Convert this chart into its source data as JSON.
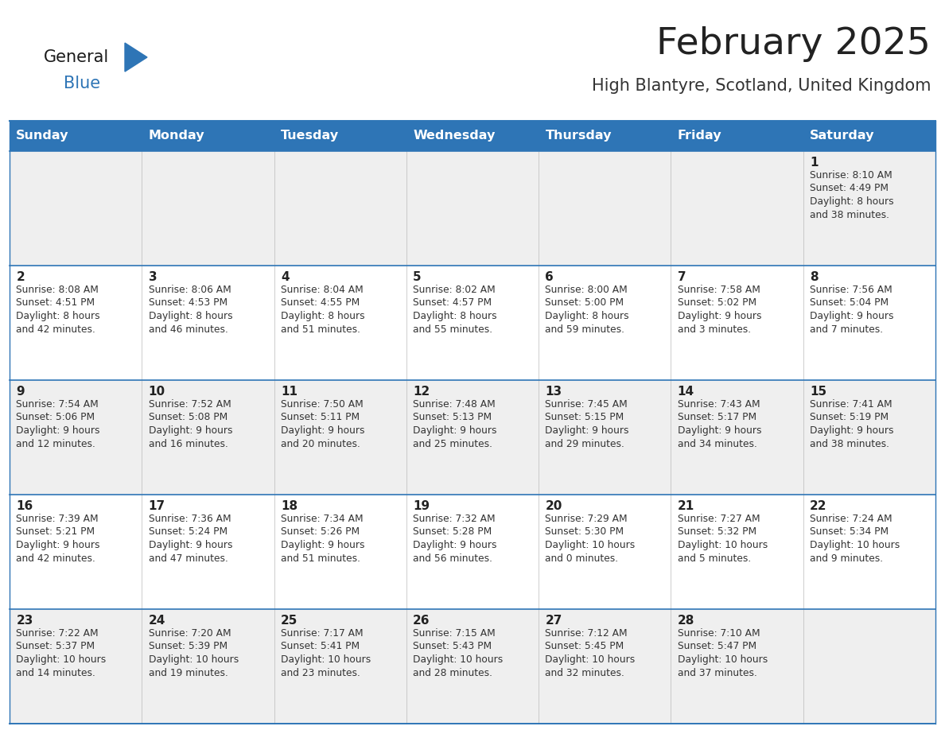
{
  "title": "February 2025",
  "subtitle": "High Blantyre, Scotland, United Kingdom",
  "days_of_week": [
    "Sunday",
    "Monday",
    "Tuesday",
    "Wednesday",
    "Thursday",
    "Friday",
    "Saturday"
  ],
  "header_bg": "#2E75B6",
  "header_text": "#FFFFFF",
  "row_bg_odd": "#EFEFEF",
  "row_bg_even": "#FFFFFF",
  "cell_border_color": "#2E75B6",
  "day_num_color": "#222222",
  "info_text_color": "#333333",
  "title_color": "#222222",
  "subtitle_color": "#333333",
  "logo_black": "#1a1a1a",
  "logo_blue": "#2E75B6",
  "calendar_data": [
    [
      null,
      null,
      null,
      null,
      null,
      null,
      {
        "day": 1,
        "sunrise": "8:10 AM",
        "sunset": "4:49 PM",
        "daylight_line1": "Daylight: 8 hours",
        "daylight_line2": "and 38 minutes."
      }
    ],
    [
      {
        "day": 2,
        "sunrise": "8:08 AM",
        "sunset": "4:51 PM",
        "daylight_line1": "Daylight: 8 hours",
        "daylight_line2": "and 42 minutes."
      },
      {
        "day": 3,
        "sunrise": "8:06 AM",
        "sunset": "4:53 PM",
        "daylight_line1": "Daylight: 8 hours",
        "daylight_line2": "and 46 minutes."
      },
      {
        "day": 4,
        "sunrise": "8:04 AM",
        "sunset": "4:55 PM",
        "daylight_line1": "Daylight: 8 hours",
        "daylight_line2": "and 51 minutes."
      },
      {
        "day": 5,
        "sunrise": "8:02 AM",
        "sunset": "4:57 PM",
        "daylight_line1": "Daylight: 8 hours",
        "daylight_line2": "and 55 minutes."
      },
      {
        "day": 6,
        "sunrise": "8:00 AM",
        "sunset": "5:00 PM",
        "daylight_line1": "Daylight: 8 hours",
        "daylight_line2": "and 59 minutes."
      },
      {
        "day": 7,
        "sunrise": "7:58 AM",
        "sunset": "5:02 PM",
        "daylight_line1": "Daylight: 9 hours",
        "daylight_line2": "and 3 minutes."
      },
      {
        "day": 8,
        "sunrise": "7:56 AM",
        "sunset": "5:04 PM",
        "daylight_line1": "Daylight: 9 hours",
        "daylight_line2": "and 7 minutes."
      }
    ],
    [
      {
        "day": 9,
        "sunrise": "7:54 AM",
        "sunset": "5:06 PM",
        "daylight_line1": "Daylight: 9 hours",
        "daylight_line2": "and 12 minutes."
      },
      {
        "day": 10,
        "sunrise": "7:52 AM",
        "sunset": "5:08 PM",
        "daylight_line1": "Daylight: 9 hours",
        "daylight_line2": "and 16 minutes."
      },
      {
        "day": 11,
        "sunrise": "7:50 AM",
        "sunset": "5:11 PM",
        "daylight_line1": "Daylight: 9 hours",
        "daylight_line2": "and 20 minutes."
      },
      {
        "day": 12,
        "sunrise": "7:48 AM",
        "sunset": "5:13 PM",
        "daylight_line1": "Daylight: 9 hours",
        "daylight_line2": "and 25 minutes."
      },
      {
        "day": 13,
        "sunrise": "7:45 AM",
        "sunset": "5:15 PM",
        "daylight_line1": "Daylight: 9 hours",
        "daylight_line2": "and 29 minutes."
      },
      {
        "day": 14,
        "sunrise": "7:43 AM",
        "sunset": "5:17 PM",
        "daylight_line1": "Daylight: 9 hours",
        "daylight_line2": "and 34 minutes."
      },
      {
        "day": 15,
        "sunrise": "7:41 AM",
        "sunset": "5:19 PM",
        "daylight_line1": "Daylight: 9 hours",
        "daylight_line2": "and 38 minutes."
      }
    ],
    [
      {
        "day": 16,
        "sunrise": "7:39 AM",
        "sunset": "5:21 PM",
        "daylight_line1": "Daylight: 9 hours",
        "daylight_line2": "and 42 minutes."
      },
      {
        "day": 17,
        "sunrise": "7:36 AM",
        "sunset": "5:24 PM",
        "daylight_line1": "Daylight: 9 hours",
        "daylight_line2": "and 47 minutes."
      },
      {
        "day": 18,
        "sunrise": "7:34 AM",
        "sunset": "5:26 PM",
        "daylight_line1": "Daylight: 9 hours",
        "daylight_line2": "and 51 minutes."
      },
      {
        "day": 19,
        "sunrise": "7:32 AM",
        "sunset": "5:28 PM",
        "daylight_line1": "Daylight: 9 hours",
        "daylight_line2": "and 56 minutes."
      },
      {
        "day": 20,
        "sunrise": "7:29 AM",
        "sunset": "5:30 PM",
        "daylight_line1": "Daylight: 10 hours",
        "daylight_line2": "and 0 minutes."
      },
      {
        "day": 21,
        "sunrise": "7:27 AM",
        "sunset": "5:32 PM",
        "daylight_line1": "Daylight: 10 hours",
        "daylight_line2": "and 5 minutes."
      },
      {
        "day": 22,
        "sunrise": "7:24 AM",
        "sunset": "5:34 PM",
        "daylight_line1": "Daylight: 10 hours",
        "daylight_line2": "and 9 minutes."
      }
    ],
    [
      {
        "day": 23,
        "sunrise": "7:22 AM",
        "sunset": "5:37 PM",
        "daylight_line1": "Daylight: 10 hours",
        "daylight_line2": "and 14 minutes."
      },
      {
        "day": 24,
        "sunrise": "7:20 AM",
        "sunset": "5:39 PM",
        "daylight_line1": "Daylight: 10 hours",
        "daylight_line2": "and 19 minutes."
      },
      {
        "day": 25,
        "sunrise": "7:17 AM",
        "sunset": "5:41 PM",
        "daylight_line1": "Daylight: 10 hours",
        "daylight_line2": "and 23 minutes."
      },
      {
        "day": 26,
        "sunrise": "7:15 AM",
        "sunset": "5:43 PM",
        "daylight_line1": "Daylight: 10 hours",
        "daylight_line2": "and 28 minutes."
      },
      {
        "day": 27,
        "sunrise": "7:12 AM",
        "sunset": "5:45 PM",
        "daylight_line1": "Daylight: 10 hours",
        "daylight_line2": "and 32 minutes."
      },
      {
        "day": 28,
        "sunrise": "7:10 AM",
        "sunset": "5:47 PM",
        "daylight_line1": "Daylight: 10 hours",
        "daylight_line2": "and 37 minutes."
      },
      null
    ]
  ]
}
